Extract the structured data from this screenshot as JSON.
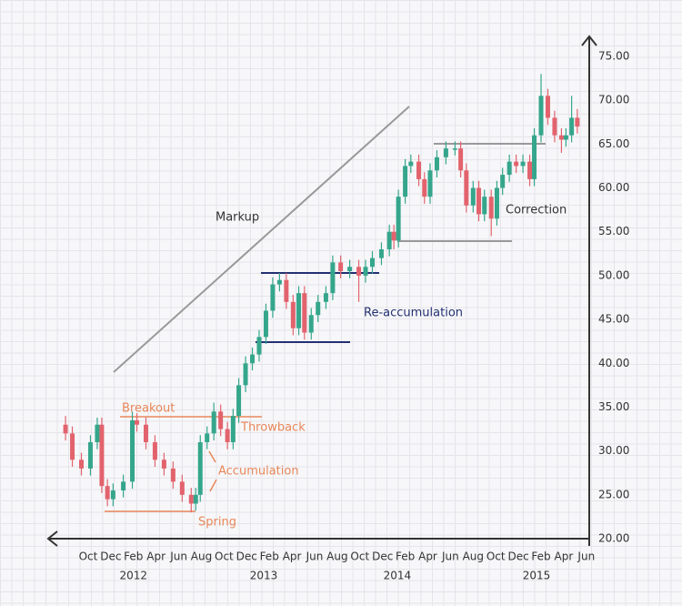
{
  "chart_data": {
    "type": "candlestick",
    "x": [
      -2.0,
      -1.4,
      -0.6,
      0.2,
      0.8,
      1.2,
      1.7,
      2.2,
      3.1,
      3.9,
      4.3,
      5.1,
      5.9,
      6.7,
      7.5,
      8.3,
      9.1,
      9.5,
      9.9,
      10.5,
      11.1,
      11.7,
      12.3,
      12.8,
      13.3,
      13.9,
      14.5,
      15.1,
      15.7,
      16.3,
      16.9,
      17.5,
      18.1,
      18.6,
      19.1,
      19.7,
      20.3,
      21.0,
      21.6,
      22.3,
      23.1,
      23.9,
      24.5,
      25.1,
      25.9,
      26.6,
      27.0,
      27.4,
      28.0,
      28.5,
      29.2,
      29.7,
      30.2,
      30.8,
      31.6,
      32.4,
      32.9,
      33.4,
      34.0,
      34.5,
      35.0,
      35.6,
      36.1,
      36.6,
      37.2,
      37.8,
      38.4,
      39.0,
      39.4,
      40.0,
      40.6,
      41.2,
      41.8,
      42.2,
      42.7,
      43.2
    ],
    "series": [
      {
        "open": [
          33,
          32,
          29,
          28,
          31,
          33,
          26,
          24.5,
          25.5,
          26.5,
          33.5,
          33,
          31,
          29,
          28,
          26.5,
          25,
          24,
          25,
          31,
          32,
          34.5,
          32.5,
          31,
          34,
          37.5,
          40,
          41,
          43,
          46,
          49,
          49.5,
          47,
          44,
          48,
          43.5,
          45.5,
          47,
          48,
          51.5,
          50.5,
          51,
          50,
          51,
          52,
          53,
          55,
          54,
          59,
          62.5,
          63,
          61,
          59,
          62,
          63.5,
          64.5,
          64.5,
          62,
          58,
          60,
          57,
          59,
          56.5,
          60,
          61.5,
          63,
          62.5,
          63,
          61,
          66,
          70.5,
          68,
          66,
          65.5,
          66,
          68
        ],
        "high": [
          34,
          32.8,
          29.8,
          31.8,
          33.8,
          33.8,
          26.8,
          26.3,
          27.3,
          34.5,
          34.3,
          33.8,
          31.8,
          29.8,
          28.8,
          27.3,
          25.8,
          25.8,
          31.8,
          32.8,
          35.5,
          35.3,
          33.3,
          34.8,
          38.3,
          40.8,
          41.8,
          43.8,
          46.8,
          49.8,
          50.3,
          50.3,
          47.8,
          48.8,
          48.8,
          46.3,
          47.8,
          48.8,
          52.3,
          52.3,
          51.8,
          51.8,
          51.8,
          52.8,
          53.8,
          55.8,
          55.8,
          59.8,
          63.3,
          63.8,
          63.8,
          61.8,
          62.8,
          64.3,
          65.3,
          65.3,
          65.3,
          62.8,
          60.8,
          60.8,
          59.8,
          59.8,
          60.8,
          62.3,
          63.8,
          63.8,
          63.8,
          63.8,
          66.8,
          73,
          71.3,
          68.8,
          66.8,
          66.8,
          70.5,
          69
        ],
        "low": [
          31.2,
          28.2,
          27.2,
          27.2,
          30.2,
          25.2,
          23.7,
          23.7,
          24.7,
          25.7,
          32.2,
          30.2,
          28.2,
          27.2,
          25.7,
          24.2,
          23,
          23.2,
          24.2,
          30.2,
          31.2,
          31.7,
          30.2,
          30.2,
          33.2,
          36.7,
          39.2,
          40.2,
          42.2,
          45.2,
          48.2,
          46.2,
          43.2,
          43.2,
          42.7,
          42.7,
          44.7,
          46.2,
          47.2,
          49.7,
          49.7,
          47,
          49.2,
          50.2,
          51.2,
          52.2,
          53,
          53.2,
          58.2,
          61.7,
          60.2,
          58.2,
          58.2,
          61.2,
          62.7,
          63.7,
          61.2,
          57.2,
          57.2,
          56.2,
          56.2,
          54.5,
          55.7,
          59.2,
          60.7,
          61.7,
          61.7,
          60.2,
          60.2,
          65.2,
          67.2,
          65.2,
          64,
          64.7,
          65.2,
          66.2
        ],
        "close": [
          32,
          29,
          28,
          31,
          33,
          26,
          24.5,
          25.5,
          26.5,
          33.5,
          33,
          31,
          29,
          28,
          26.5,
          25,
          24,
          25,
          31,
          32,
          34.5,
          32.5,
          31,
          34,
          37.5,
          40,
          41,
          43,
          46,
          49,
          49.5,
          47,
          44,
          48,
          43.5,
          45.5,
          47,
          48,
          51.5,
          50.5,
          51,
          50,
          51,
          52,
          53,
          55,
          54,
          59,
          62.5,
          63,
          61,
          59,
          62,
          63.5,
          64.5,
          64.5,
          62,
          58,
          60,
          57,
          59,
          56.5,
          60,
          61.5,
          63,
          62.5,
          63,
          61,
          66,
          70.5,
          68,
          66,
          65.5,
          66,
          68,
          67
        ]
      }
    ],
    "colors": {
      "up": "#35a68c",
      "down": "#e2636d"
    },
    "xlim": [
      -3.5,
      44.2
    ],
    "ylim": [
      20,
      77
    ],
    "xticks": [
      {
        "value": 0,
        "label": "Oct"
      },
      {
        "value": 2,
        "label": "Dec"
      },
      {
        "value": 4,
        "label": "Feb"
      },
      {
        "value": 6,
        "label": "Apr"
      },
      {
        "value": 8,
        "label": "Jun"
      },
      {
        "value": 10,
        "label": "Aug"
      },
      {
        "value": 12,
        "label": "Oct"
      },
      {
        "value": 14,
        "label": "Dec"
      },
      {
        "value": 16,
        "label": "Feb"
      },
      {
        "value": 18,
        "label": "Apr"
      },
      {
        "value": 20,
        "label": "Jun"
      },
      {
        "value": 22,
        "label": "Aug"
      },
      {
        "value": 24,
        "label": "Oct"
      },
      {
        "value": 26,
        "label": "Dec"
      },
      {
        "value": 28,
        "label": "Feb"
      },
      {
        "value": 30,
        "label": "Apr"
      },
      {
        "value": 32,
        "label": "Jun"
      },
      {
        "value": 34,
        "label": "Aug"
      },
      {
        "value": 36,
        "label": "Oct"
      },
      {
        "value": 38,
        "label": "Dec"
      },
      {
        "value": 40,
        "label": "Feb"
      },
      {
        "value": 42,
        "label": "Apr"
      },
      {
        "value": 44,
        "label": "Jun"
      }
    ],
    "year_labels": [
      {
        "value": 4,
        "label": "2012"
      },
      {
        "value": 15.5,
        "label": "2013"
      },
      {
        "value": 27.3,
        "label": "2014"
      },
      {
        "value": 39.6,
        "label": "2015"
      }
    ],
    "yticks": [
      {
        "value": 20,
        "label": "20.00"
      },
      {
        "value": 25,
        "label": "25.00"
      },
      {
        "value": 30,
        "label": "30.00"
      },
      {
        "value": 35,
        "label": "35.00"
      },
      {
        "value": 40,
        "label": "40.00"
      },
      {
        "value": 45,
        "label": "45.00"
      },
      {
        "value": 50,
        "label": "50.00"
      },
      {
        "value": 55,
        "label": "55.00"
      },
      {
        "value": 60,
        "label": "60.00"
      },
      {
        "value": 65,
        "label": "65.00"
      },
      {
        "value": 70,
        "label": "70.00"
      },
      {
        "value": 75,
        "label": "75.00"
      }
    ],
    "annotations": [
      "Markup",
      "Breakout",
      "Throwback",
      "Accumulation",
      "Spring",
      "Re-accumulation",
      "Correction"
    ]
  }
}
